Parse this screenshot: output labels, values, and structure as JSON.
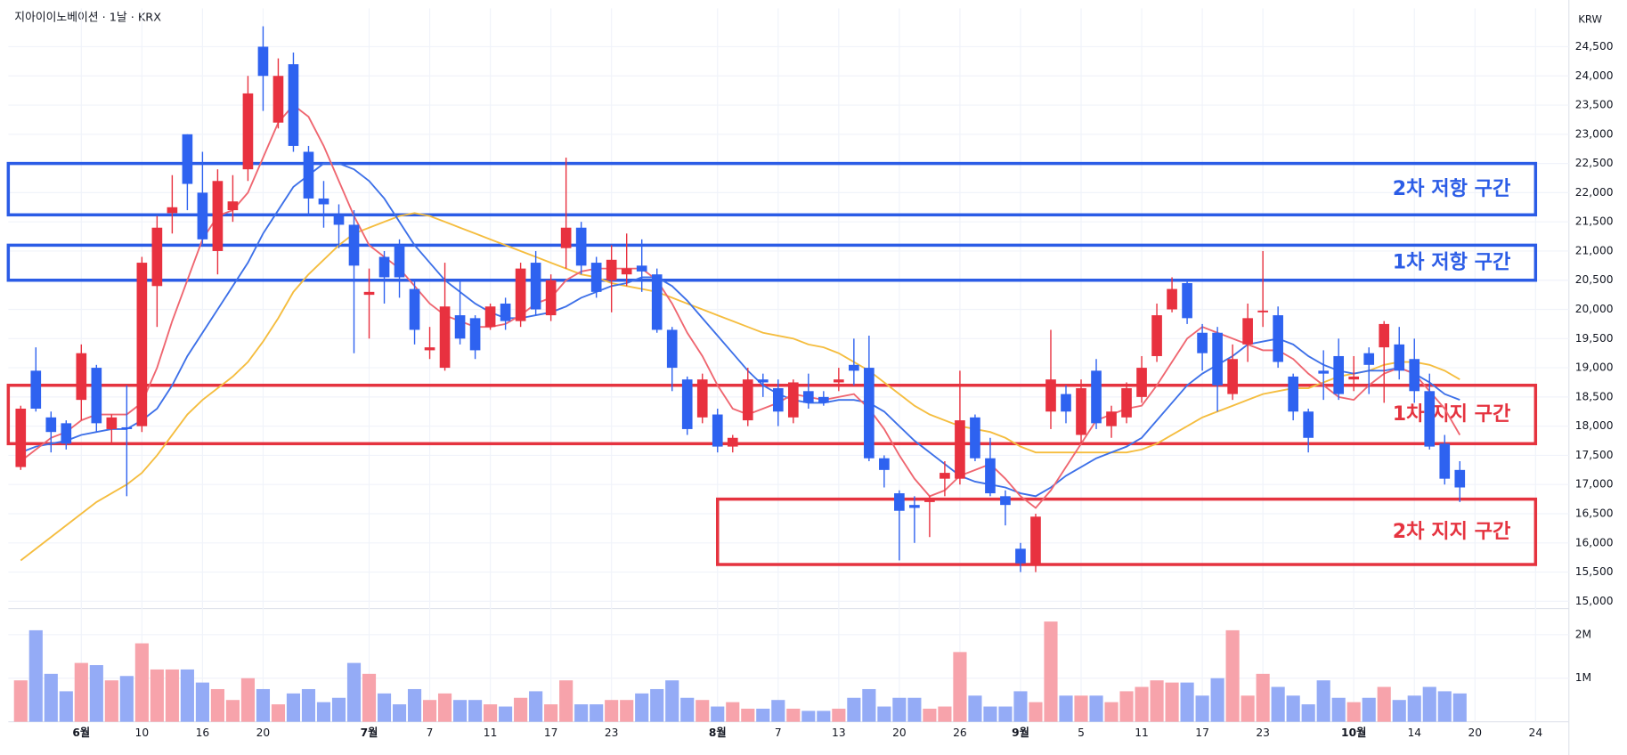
{
  "chart_data": {
    "type": "candlestick",
    "title": "지아이이노베이션 · 1날 · KRX",
    "currency": "KRW",
    "up_color": "#e8313f",
    "down_color": "#2e62f0",
    "volume_up_color": "#f7a3ab",
    "volume_down_color": "#94abf6",
    "xlim": [
      -0.82,
      102.2
    ],
    "xticks": [
      {
        "value": 4,
        "label": "6월"
      },
      {
        "value": 8,
        "label": "10"
      },
      {
        "value": 12,
        "label": "16"
      },
      {
        "value": 16,
        "label": "20"
      },
      {
        "value": 23,
        "label": "7월"
      },
      {
        "value": 27,
        "label": "7"
      },
      {
        "value": 31,
        "label": "11"
      },
      {
        "value": 35,
        "label": "17"
      },
      {
        "value": 39,
        "label": "23"
      },
      {
        "value": 46,
        "label": "8월"
      },
      {
        "value": 50,
        "label": "7"
      },
      {
        "value": 54,
        "label": "13"
      },
      {
        "value": 58,
        "label": "20"
      },
      {
        "value": 62,
        "label": "26"
      },
      {
        "value": 66,
        "label": "9월"
      },
      {
        "value": 70,
        "label": "5"
      },
      {
        "value": 74,
        "label": "11"
      },
      {
        "value": 78,
        "label": "17"
      },
      {
        "value": 82,
        "label": "23"
      },
      {
        "value": 88,
        "label": "10월"
      },
      {
        "value": 92,
        "label": "14"
      },
      {
        "value": 96,
        "label": "20"
      },
      {
        "value": 100,
        "label": "24"
      }
    ],
    "ylim": [
      14893,
      25158
    ],
    "yticks": [
      {
        "value": 15000,
        "label": "15,000"
      },
      {
        "value": 15500,
        "label": "15,500"
      },
      {
        "value": 16000,
        "label": "16,000"
      },
      {
        "value": 16500,
        "label": "16,500"
      },
      {
        "value": 17000,
        "label": "17,000"
      },
      {
        "value": 17500,
        "label": "17,500"
      },
      {
        "value": 18000,
        "label": "18,000"
      },
      {
        "value": 18500,
        "label": "18,500"
      },
      {
        "value": 19000,
        "label": "19,000"
      },
      {
        "value": 19500,
        "label": "19,500"
      },
      {
        "value": 20000,
        "label": "20,000"
      },
      {
        "value": 20500,
        "label": "20,500"
      },
      {
        "value": 21000,
        "label": "21,000"
      },
      {
        "value": 21500,
        "label": "21,500"
      },
      {
        "value": 22000,
        "label": "22,000"
      },
      {
        "value": 22500,
        "label": "22,500"
      },
      {
        "value": 23000,
        "label": "23,000"
      },
      {
        "value": 23500,
        "label": "23,500"
      },
      {
        "value": 24000,
        "label": "24,000"
      },
      {
        "value": 24500,
        "label": "24,500"
      }
    ],
    "volume_lim": [
      0,
      2550000
    ],
    "volume_ticks": [
      {
        "value": 1000000,
        "label": "1M"
      },
      {
        "value": 2000000,
        "label": "2M"
      }
    ],
    "grid": true,
    "open": [
      17300,
      18950,
      18150,
      18050,
      18450,
      19000,
      17950,
      17980,
      18000,
      20400,
      21650,
      23000,
      22000,
      21000,
      21700,
      22400,
      24500,
      23200,
      24200,
      22700,
      21900,
      21600,
      21450,
      20250,
      20900,
      21100,
      20350,
      19300,
      19000,
      19900,
      19850,
      19700,
      20100,
      19800,
      20800,
      19900,
      21050,
      21400,
      20800,
      20500,
      20600,
      20750,
      20600,
      19650,
      18800,
      18150,
      18200,
      17650,
      18100,
      18800,
      18650,
      18150,
      18600,
      18500,
      18750,
      19050,
      19000,
      17450,
      16850,
      16650,
      16700,
      17100,
      17100,
      18150,
      17450,
      16800,
      15900,
      15650,
      18250,
      18550,
      17850,
      18950,
      18000,
      18150,
      18500,
      19200,
      20000,
      20450,
      19600,
      19600,
      18550,
      19400,
      19950,
      19900,
      18850,
      18250,
      18950,
      19200,
      18800,
      19250,
      19350,
      19400,
      19150,
      18600,
      17700,
      17250
    ],
    "high": [
      18350,
      19350,
      18250,
      18100,
      19400,
      19050,
      18200,
      18700,
      20900,
      21600,
      22300,
      23000,
      22700,
      22400,
      22300,
      24000,
      24850,
      24300,
      24400,
      22800,
      22200,
      21800,
      21700,
      20700,
      21000,
      21200,
      20500,
      19700,
      20800,
      20500,
      19900,
      20100,
      20200,
      20800,
      21000,
      20600,
      22600,
      21500,
      20900,
      21100,
      21300,
      21200,
      20700,
      19700,
      18850,
      18900,
      18300,
      17850,
      19000,
      18900,
      18800,
      18800,
      18900,
      18600,
      19000,
      19500,
      19550,
      17500,
      16900,
      16800,
      16800,
      17400,
      18950,
      18200,
      17800,
      16900,
      16000,
      16500,
      19650,
      18700,
      18800,
      19150,
      18350,
      18750,
      19200,
      20100,
      20550,
      20500,
      19750,
      19700,
      19400,
      20100,
      21000,
      20050,
      18900,
      18300,
      19300,
      19500,
      19200,
      19350,
      19800,
      19700,
      19500,
      18900,
      17850,
      17400
    ],
    "low": [
      17250,
      18250,
      17550,
      17600,
      18100,
      17900,
      17700,
      16800,
      17900,
      19700,
      21300,
      21700,
      21100,
      20600,
      21500,
      22200,
      23400,
      23100,
      22700,
      21600,
      21400,
      21050,
      19250,
      19500,
      20100,
      20200,
      19400,
      19150,
      18950,
      19400,
      19150,
      19650,
      19650,
      19700,
      19900,
      19800,
      20700,
      20600,
      20200,
      19950,
      20400,
      20300,
      19600,
      18600,
      17850,
      18050,
      17550,
      17550,
      18000,
      18500,
      18000,
      18050,
      18300,
      18350,
      18600,
      18700,
      17400,
      16950,
      15700,
      16000,
      16100,
      16800,
      17000,
      17400,
      16800,
      16300,
      15500,
      15500,
      17950,
      18050,
      17700,
      17950,
      17800,
      18050,
      18400,
      19100,
      19950,
      19750,
      18950,
      18250,
      18450,
      19100,
      19700,
      19000,
      18100,
      17550,
      18450,
      18450,
      18600,
      18550,
      18400,
      18800,
      18400,
      17600,
      17000,
      16700
    ],
    "close": [
      18300,
      18300,
      17900,
      17700,
      19250,
      18050,
      18150,
      17950,
      20800,
      21400,
      21750,
      22150,
      21200,
      22200,
      21850,
      23700,
      24000,
      24000,
      22800,
      21900,
      21800,
      21450,
      20750,
      20300,
      20550,
      20550,
      19650,
      19350,
      20050,
      19500,
      19300,
      20050,
      19800,
      20700,
      20000,
      20500,
      21400,
      20750,
      20300,
      20850,
      20700,
      20650,
      19650,
      19000,
      17950,
      18800,
      17650,
      17800,
      18800,
      18750,
      18250,
      18750,
      18400,
      18400,
      18800,
      18950,
      17450,
      17250,
      16550,
      16600,
      16750,
      17200,
      18100,
      17450,
      16850,
      16650,
      15650,
      16450,
      18800,
      18250,
      18650,
      18050,
      18250,
      18650,
      19000,
      19900,
      20350,
      19850,
      19250,
      18700,
      19150,
      19850,
      19980,
      19100,
      18250,
      17800,
      18900,
      18550,
      18850,
      19050,
      19750,
      18950,
      18600,
      17650,
      17100,
      16950
    ],
    "volume": [
      950000,
      2100000,
      1100000,
      700000,
      1350000,
      1300000,
      950000,
      1050000,
      1800000,
      1200000,
      1200000,
      1200000,
      900000,
      750000,
      500000,
      1000000,
      750000,
      400000,
      650000,
      750000,
      450000,
      550000,
      1350000,
      1100000,
      650000,
      400000,
      750000,
      500000,
      650000,
      500000,
      500000,
      400000,
      350000,
      550000,
      700000,
      400000,
      950000,
      400000,
      400000,
      500000,
      500000,
      650000,
      750000,
      950000,
      550000,
      500000,
      350000,
      450000,
      300000,
      300000,
      500000,
      300000,
      250000,
      250000,
      300000,
      550000,
      750000,
      350000,
      550000,
      550000,
      300000,
      350000,
      1600000,
      600000,
      350000,
      350000,
      700000,
      450000,
      2300000,
      600000,
      600000,
      600000,
      450000,
      700000,
      800000,
      950000,
      900000,
      900000,
      600000,
      1000000,
      2100000,
      600000,
      1100000,
      800000,
      600000,
      400000,
      950000,
      550000,
      450000,
      550000,
      800000,
      500000,
      600000,
      800000,
      700000,
      650000
    ],
    "moving_averages": [
      {
        "color": "#f5bd3f",
        "values": [
          15700,
          15900,
          16100,
          16300,
          16500,
          16700,
          16850,
          17000,
          17200,
          17500,
          17850,
          18200,
          18450,
          18650,
          18850,
          19100,
          19450,
          19850,
          20300,
          20600,
          20850,
          21100,
          21300,
          21400,
          21500,
          21600,
          21650,
          21600,
          21500,
          21400,
          21300,
          21200,
          21100,
          21000,
          20900,
          20800,
          20700,
          20600,
          20550,
          20450,
          20400,
          20350,
          20300,
          20200,
          20100,
          20000,
          19900,
          19800,
          19700,
          19600,
          19550,
          19500,
          19400,
          19350,
          19250,
          19100,
          18950,
          18750,
          18550,
          18350,
          18200,
          18100,
          18000,
          17950,
          17900,
          17800,
          17650,
          17550,
          17550,
          17550,
          17550,
          17550,
          17550,
          17550,
          17600,
          17700,
          17850,
          18000,
          18150,
          18250,
          18350,
          18450,
          18550,
          18600,
          18650,
          18650,
          18750,
          18850,
          18900,
          18950,
          19050,
          19100,
          19100,
          19050,
          18950,
          18800
        ]
      },
      {
        "color": "#3d70e8",
        "values": [
          17550,
          17650,
          17700,
          17750,
          17850,
          17900,
          17950,
          17950,
          18100,
          18300,
          18700,
          19200,
          19600,
          20000,
          20400,
          20800,
          21300,
          21700,
          22100,
          22300,
          22500,
          22500,
          22400,
          22200,
          21900,
          21500,
          21100,
          20800,
          20500,
          20300,
          20100,
          19950,
          19850,
          19850,
          19900,
          19950,
          20050,
          20200,
          20300,
          20400,
          20450,
          20550,
          20550,
          20400,
          20150,
          19850,
          19550,
          19250,
          18950,
          18700,
          18550,
          18450,
          18400,
          18400,
          18450,
          18450,
          18400,
          18250,
          18000,
          17750,
          17550,
          17350,
          17150,
          17050,
          17000,
          16950,
          16850,
          16800,
          16950,
          17150,
          17300,
          17450,
          17550,
          17650,
          17800,
          18100,
          18400,
          18700,
          18900,
          19050,
          19200,
          19400,
          19450,
          19500,
          19400,
          19200,
          19050,
          18950,
          18900,
          18950,
          18950,
          19000,
          18900,
          18750,
          18550,
          18450
        ]
      },
      {
        "color": "#ef6670",
        "values": [
          17400,
          17600,
          17800,
          17900,
          18100,
          18200,
          18200,
          18200,
          18400,
          19000,
          19800,
          20500,
          21200,
          21600,
          21700,
          22000,
          22600,
          23200,
          23500,
          23300,
          22800,
          22200,
          21600,
          21100,
          20900,
          20700,
          20400,
          20100,
          19900,
          19800,
          19700,
          19700,
          19750,
          19900,
          20100,
          20200,
          20500,
          20650,
          20700,
          20700,
          20700,
          20700,
          20500,
          20100,
          19600,
          19200,
          18700,
          18300,
          18200,
          18300,
          18400,
          18550,
          18500,
          18450,
          18500,
          18550,
          18300,
          17950,
          17500,
          17100,
          16800,
          16900,
          17150,
          17250,
          17350,
          17100,
          16800,
          16600,
          16900,
          17300,
          17700,
          18100,
          18200,
          18300,
          18350,
          18700,
          19100,
          19500,
          19700,
          19600,
          19500,
          19400,
          19300,
          19300,
          19150,
          18900,
          18700,
          18500,
          18450,
          18700,
          18900,
          19000,
          18900,
          18600,
          18300,
          17850
        ]
      }
    ],
    "zones": [
      {
        "label": "2차 저항 구간",
        "color": "#2b5ce6",
        "top": 22500,
        "bottom": 21620,
        "x_end": 100
      },
      {
        "label": "1차 저항 구간",
        "color": "#2b5ce6",
        "top": 21100,
        "bottom": 20500,
        "x_end": 100
      },
      {
        "label": "1차 지지 구간",
        "color": "#e5333f",
        "top": 18700,
        "bottom": 17700,
        "x_end": 100
      },
      {
        "label": "2차 지지 구간",
        "color": "#e5333f",
        "top": 16750,
        "bottom": 15630,
        "x_start": 46,
        "x_end": 100
      }
    ]
  }
}
